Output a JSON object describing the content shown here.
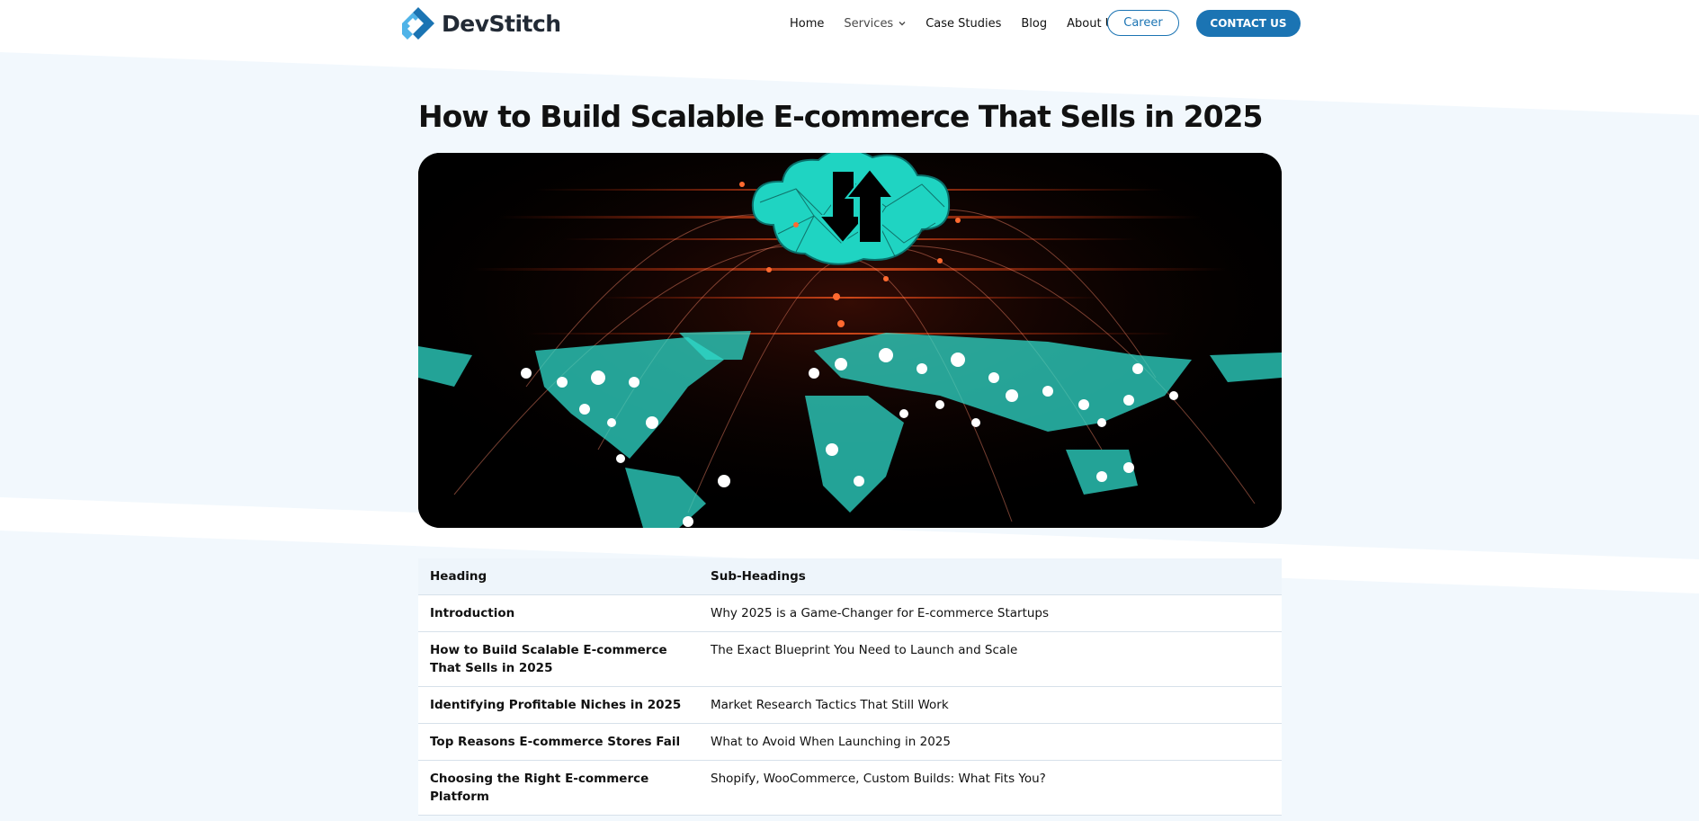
{
  "brand": {
    "name": "DevStitch",
    "accent": "#1b74b3",
    "logo_light": "#4fb3e8",
    "logo_dark": "#1b74b3"
  },
  "nav": {
    "items": [
      {
        "label": "Home"
      },
      {
        "label": "Services",
        "has_dropdown": true
      },
      {
        "label": "Case Studies"
      },
      {
        "label": "Blog"
      },
      {
        "label": "About Us"
      }
    ],
    "career_label": "Career",
    "contact_label": "CONTACT US"
  },
  "article": {
    "title": "How to Build Scalable E-commerce That Sells in 2025",
    "hero_image": "world-map-cloud-network-icon"
  },
  "toc": {
    "columns": [
      "Heading",
      "Sub-Headings"
    ],
    "rows": [
      {
        "heading": "Introduction",
        "sub": "Why 2025 is a Game-Changer for E-commerce Startups"
      },
      {
        "heading": "How to Build Scalable E-commerce That Sells in 2025",
        "sub": "The Exact Blueprint You Need to Launch and Scale"
      },
      {
        "heading": "Identifying Profitable Niches in 2025",
        "sub": "Market Research Tactics That Still Work"
      },
      {
        "heading": "Top Reasons E-commerce Stores Fail",
        "sub": "What to Avoid When Launching in 2025"
      },
      {
        "heading": "Choosing the Right E-commerce Platform",
        "sub": "Shopify, WooCommerce, Custom Builds: What Fits You?"
      }
    ]
  }
}
